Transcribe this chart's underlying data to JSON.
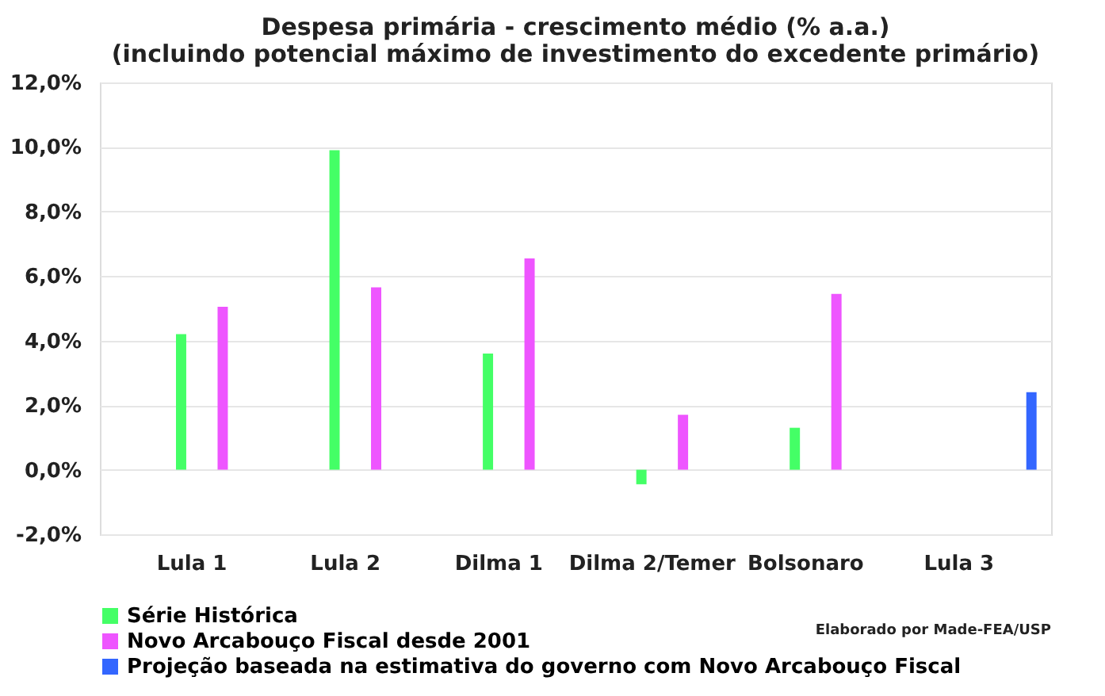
{
  "chart_data": {
    "type": "bar",
    "title": [
      "Despesa primária - crescimento médio (% a.a.)",
      "(incluindo potencial máximo de investimento do excedente primário)"
    ],
    "categories": [
      "Lula 1",
      "Lula 2",
      "Dilma 1",
      "Dilma 2/Temer",
      "Bolsonaro",
      "Lula 3"
    ],
    "series": [
      {
        "name": "Série Histórica",
        "color": "#44ff66",
        "values": [
          4.2,
          9.9,
          3.6,
          -0.45,
          1.3,
          null
        ]
      },
      {
        "name": "Novo Arcabouço Fiscal desde 2001",
        "color": "#ee55ff",
        "values": [
          5.05,
          5.65,
          6.55,
          1.7,
          5.45,
          null
        ]
      },
      {
        "name": "Projeção baseada na estimativa do governo com Novo Arcabouço Fiscal",
        "color": "#3366ff",
        "values": [
          null,
          null,
          null,
          null,
          null,
          2.4
        ]
      }
    ],
    "ylim": [
      -2,
      12
    ],
    "yticks": [
      {
        "value": -2,
        "label": "-2,0%"
      },
      {
        "value": 0,
        "label": "0,0%"
      },
      {
        "value": 2,
        "label": "2,0%"
      },
      {
        "value": 4,
        "label": "4,0%"
      },
      {
        "value": 6,
        "label": "6,0%"
      },
      {
        "value": 8,
        "label": "8,0%"
      },
      {
        "value": 10,
        "label": "10,0%"
      },
      {
        "value": 12,
        "label": "12,0%"
      }
    ],
    "grid": "y",
    "legend": "bottom",
    "annotations": [
      "Elaborado por Made-FEA/USP"
    ]
  }
}
